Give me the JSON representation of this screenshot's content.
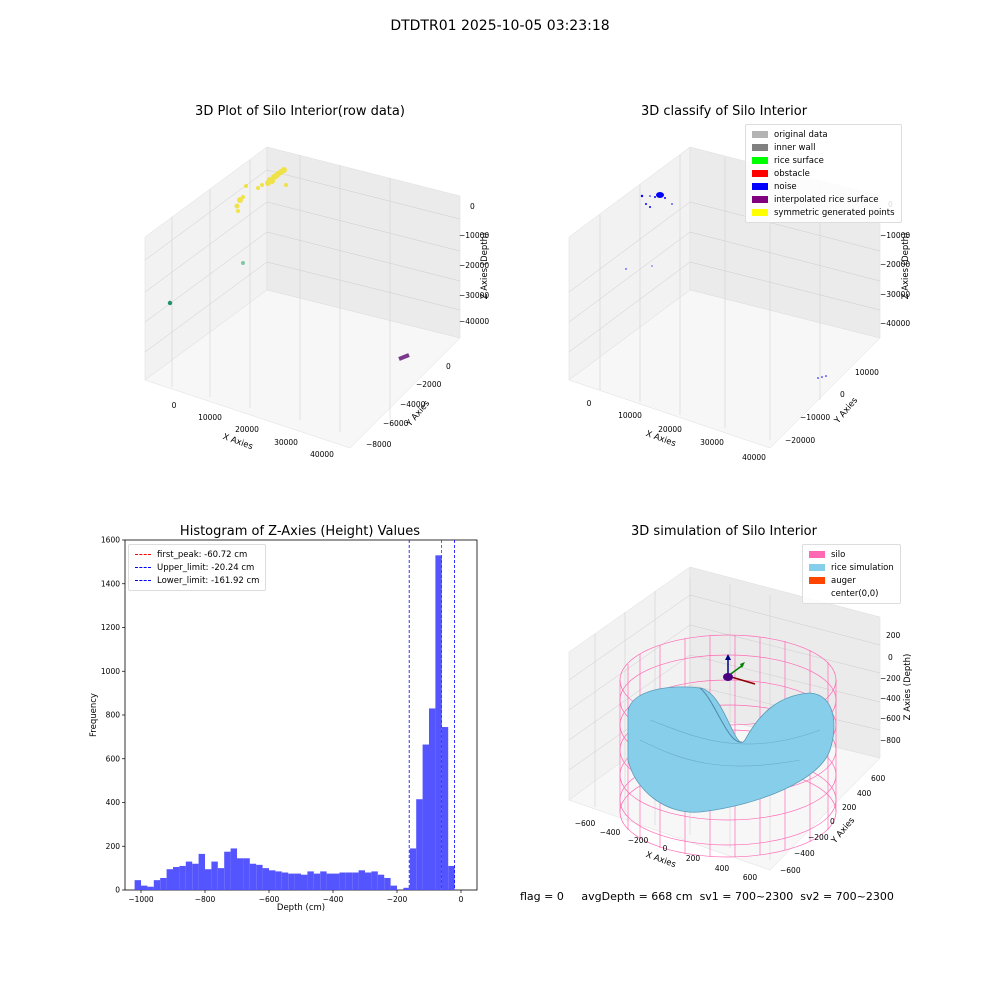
{
  "title": "DTDTR01 2025-10-05 03:23:18",
  "status": {
    "flag": "flag = 0",
    "avg_depth": "avgDepth = 668 cm",
    "sv1": "sv1 = 700~2300",
    "sv2": "sv2 = 700~2300"
  },
  "panels": {
    "raw": {
      "title": "3D Plot of Silo Interior(row data)",
      "xlabel": "X Axies",
      "ylabel": "Y Axies",
      "zlabel": "Z Axies (Depth)",
      "xticks": [
        "0",
        "10000",
        "20000",
        "30000",
        "40000"
      ],
      "yticks": [
        "0",
        "−2000",
        "−4000",
        "−6000",
        "−8000"
      ],
      "zticks": [
        "0",
        "−10000",
        "−20000",
        "−30000",
        "−40000"
      ]
    },
    "classify": {
      "title": "3D classify of Silo Interior",
      "xlabel": "X Axies",
      "ylabel": "Y Axies",
      "zlabel": "Z Axies (Depth)",
      "xticks": [
        "0",
        "10000",
        "20000",
        "30000",
        "40000"
      ],
      "yticks": [
        "10000",
        "0",
        "−10000",
        "−20000"
      ],
      "zticks": [
        "0",
        "−10000",
        "−20000",
        "−30000",
        "−40000"
      ],
      "legend": [
        {
          "label": "original data",
          "color": "#b3b3b3"
        },
        {
          "label": "inner wall",
          "color": "#808080"
        },
        {
          "label": "rice surface",
          "color": "#00ff00"
        },
        {
          "label": "obstacle",
          "color": "#ff0000"
        },
        {
          "label": "noise",
          "color": "#0000ff"
        },
        {
          "label": "interpolated rice surface",
          "color": "#800080"
        },
        {
          "label": "symmetric generated points",
          "color": "#ffff00"
        }
      ]
    },
    "simulation": {
      "title": "3D simulation of Silo Interior",
      "xlabel": "X Axies",
      "ylabel": "Y Axies",
      "zlabel": "Z Axies (Depth)",
      "xticks": [
        "−600",
        "−400",
        "−200",
        "0",
        "200",
        "400",
        "600"
      ],
      "yticks": [
        "600",
        "400",
        "200",
        "0",
        "−200",
        "−400",
        "−600"
      ],
      "zticks": [
        "200",
        "0",
        "−200",
        "−400",
        "−600",
        "−800"
      ],
      "legend": [
        {
          "label": "silo",
          "color": "#ff69b4"
        },
        {
          "label": "rice simulation",
          "color": "#87ceeb"
        },
        {
          "label": "auger",
          "color": "#ff4500"
        },
        {
          "label": "center(0,0)",
          "color": ""
        }
      ]
    }
  },
  "chart_data": [
    {
      "type": "bar",
      "title": "Histogram of Z-Axies (Height) Values",
      "xlabel": "Depth (cm)",
      "ylabel": "Frequency",
      "xlim": [
        -1050,
        50
      ],
      "ylim": [
        0,
        1600
      ],
      "xticks": [
        -1000,
        -800,
        -600,
        -400,
        -200,
        0
      ],
      "yticks": [
        0,
        200,
        400,
        600,
        800,
        1000,
        1200,
        1400,
        1600
      ],
      "bin_width": 20,
      "bin_starts": [
        -1020,
        -1000,
        -980,
        -960,
        -940,
        -920,
        -900,
        -880,
        -860,
        -840,
        -820,
        -800,
        -780,
        -760,
        -740,
        -720,
        -700,
        -680,
        -660,
        -640,
        -620,
        -600,
        -580,
        -560,
        -540,
        -520,
        -500,
        -480,
        -460,
        -440,
        -420,
        -400,
        -380,
        -360,
        -340,
        -320,
        -300,
        -280,
        -260,
        -240,
        -220,
        -200,
        -180,
        -160,
        -140,
        -120,
        -100,
        -80,
        -60,
        -40,
        -20,
        0
      ],
      "values": [
        45,
        20,
        15,
        45,
        55,
        95,
        105,
        110,
        130,
        120,
        165,
        95,
        130,
        100,
        175,
        190,
        145,
        145,
        120,
        115,
        100,
        90,
        85,
        80,
        75,
        75,
        70,
        85,
        75,
        85,
        75,
        75,
        80,
        80,
        80,
        90,
        80,
        85,
        70,
        55,
        20,
        0,
        10,
        190,
        415,
        665,
        830,
        1530,
        745,
        110,
        0,
        0
      ],
      "series": [
        {
          "name": "first_peak: -60.72 cm",
          "x": -60.72,
          "color": "#ff0000"
        },
        {
          "name": "Upper_limit: -20.24 cm",
          "x": -20.24,
          "color": "#0000ff"
        },
        {
          "name": "Lower_limit: -161.92 cm",
          "x": -161.92,
          "color": "#0000ff"
        }
      ],
      "bar_color": "#4c4cff",
      "legend": "top-left",
      "grid": false
    }
  ]
}
